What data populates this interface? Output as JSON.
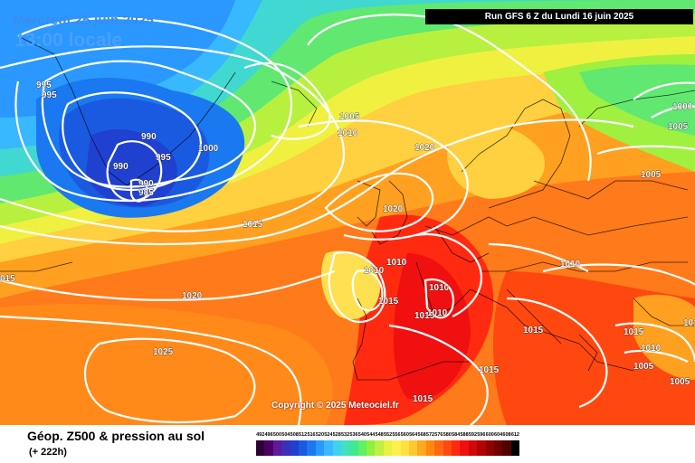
{
  "header": {
    "date": "Mercredi 25 juin 2025",
    "time": "13:00 locale",
    "run": "Run GFS 6 Z du Lundi 16 juin 2025"
  },
  "copyright": "Copyright © 2025 Meteociel.fr",
  "legend": {
    "title": "Géop. Z500 & pression au sol",
    "subtitle": "(+ 222h)",
    "levels": [
      "492",
      "496",
      "500",
      "504",
      "508",
      "512",
      "516",
      "520",
      "524",
      "528",
      "532",
      "536",
      "540",
      "544",
      "548",
      "552",
      "556",
      "560",
      "564",
      "568",
      "572",
      "576",
      "580",
      "584",
      "588",
      "592",
      "596",
      "600",
      "604",
      "608",
      "612"
    ],
    "colors": [
      "#2d0033",
      "#4b0066",
      "#5e1a99",
      "#3c2fb8",
      "#2040d0",
      "#1a5ae0",
      "#1a78f0",
      "#2a98ff",
      "#3ab8ff",
      "#40d0f0",
      "#40e0c0",
      "#40e890",
      "#60f060",
      "#90f040",
      "#c0f040",
      "#e8f040",
      "#fff050",
      "#ffe040",
      "#ffc830",
      "#ffa820",
      "#ff8810",
      "#ff6810",
      "#ff4810",
      "#ff2810",
      "#f01010",
      "#d00808",
      "#b00404",
      "#900000",
      "#700000",
      "#500000",
      "#000000"
    ]
  },
  "map": {
    "isobar_labels": [
      {
        "text": "995"
      },
      {
        "text": "995"
      },
      {
        "text": "990"
      },
      {
        "text": "990"
      },
      {
        "text": "990"
      },
      {
        "text": "985"
      },
      {
        "text": "995"
      },
      {
        "text": "1000"
      },
      {
        "text": "1005"
      },
      {
        "text": "1010"
      },
      {
        "text": "1020"
      },
      {
        "text": "1015"
      },
      {
        "text": "1020"
      },
      {
        "text": "1010"
      },
      {
        "text": "1010"
      },
      {
        "text": "1015"
      },
      {
        "text": "1010"
      },
      {
        "text": "1015"
      },
      {
        "text": "1010"
      },
      {
        "text": "1020"
      },
      {
        "text": "1025"
      },
      {
        "text": "015"
      },
      {
        "text": "1000"
      },
      {
        "text": "1005"
      },
      {
        "text": "1005"
      },
      {
        "text": "1010"
      },
      {
        "text": "1015"
      },
      {
        "text": "1015"
      },
      {
        "text": "1015"
      },
      {
        "text": "1015"
      },
      {
        "text": "1015"
      },
      {
        "text": "1010"
      },
      {
        "text": "1005"
      },
      {
        "text": "1005"
      }
    ]
  }
}
